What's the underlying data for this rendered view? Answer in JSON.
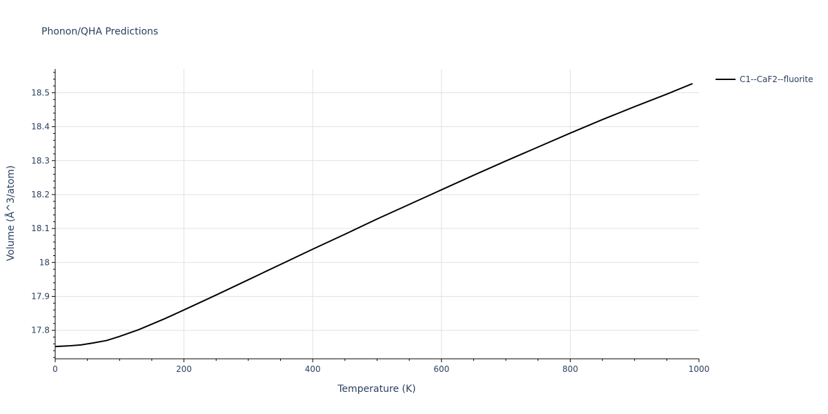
{
  "chart_data": {
    "type": "line",
    "title": "Phonon/QHA Predictions",
    "xlabel": "Temperature (K)",
    "ylabel": "Volume (Å^3/atom)",
    "xlim": [
      0,
      1000
    ],
    "ylim": [
      17.716,
      18.57
    ],
    "x_ticks": [
      0,
      200,
      400,
      600,
      800,
      1000
    ],
    "x_tick_labels": [
      "0",
      "200",
      "400",
      "600",
      "800",
      "1000"
    ],
    "y_ticks": [
      17.8,
      17.9,
      18.0,
      18.1,
      18.2,
      18.3,
      18.4,
      18.5
    ],
    "y_tick_labels": [
      "17.8",
      "17.9",
      "18",
      "18.1",
      "18.2",
      "18.3",
      "18.4",
      "18.5"
    ],
    "grid": true,
    "legend_position": "top-right",
    "series": [
      {
        "name": "C1--CaF2--fluorite",
        "color": "#000000",
        "x": [
          0,
          20,
          40,
          60,
          80,
          100,
          130,
          170,
          200,
          250,
          300,
          350,
          400,
          450,
          500,
          550,
          600,
          650,
          700,
          750,
          800,
          850,
          900,
          950,
          990
        ],
        "y": [
          17.752,
          17.754,
          17.757,
          17.763,
          17.77,
          17.782,
          17.802,
          17.834,
          17.86,
          17.904,
          17.949,
          17.994,
          18.039,
          18.083,
          18.128,
          18.171,
          18.214,
          18.257,
          18.299,
          18.34,
          18.381,
          18.421,
          18.459,
          18.496,
          18.527
        ]
      }
    ]
  }
}
